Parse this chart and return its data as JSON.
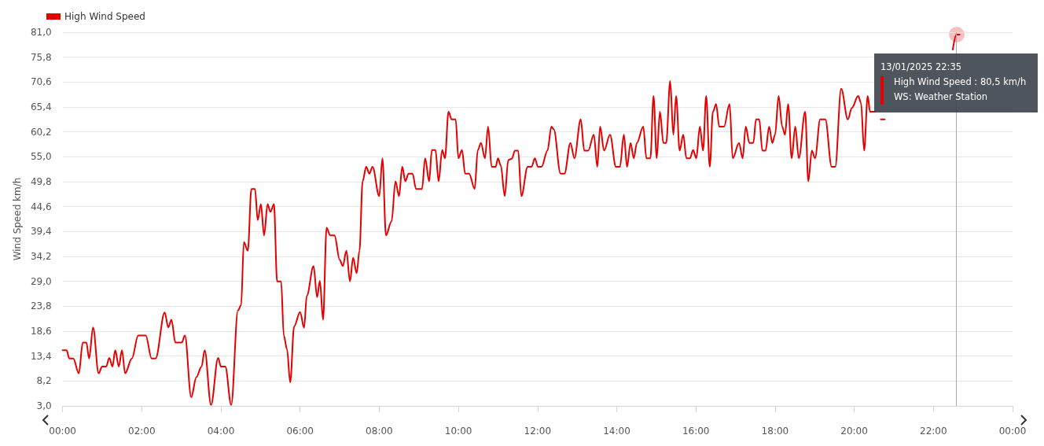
{
  "chart_data": {
    "type": "line",
    "ylabel": "Wind Speed km/h",
    "legend": "top left",
    "grid": "y",
    "marker": "none",
    "line_style": "solid",
    "xlim": [
      0,
      24
    ],
    "xticks": [
      {
        "value": 0,
        "label": "00:00"
      },
      {
        "value": 2,
        "label": "02:00"
      },
      {
        "value": 4,
        "label": "04:00"
      },
      {
        "value": 6,
        "label": "06:00"
      },
      {
        "value": 8,
        "label": "08:00"
      },
      {
        "value": 10,
        "label": "10:00"
      },
      {
        "value": 12,
        "label": "12:00"
      },
      {
        "value": 14,
        "label": "14:00"
      },
      {
        "value": 16,
        "label": "16:00"
      },
      {
        "value": 18,
        "label": "18:00"
      },
      {
        "value": 20,
        "label": "20:00"
      },
      {
        "value": 22,
        "label": "22:00"
      },
      {
        "value": 24,
        "label": "00:00"
      }
    ],
    "ylim": [
      3,
      81
    ],
    "yticks": [
      {
        "value": 3,
        "label": "3,0"
      },
      {
        "value": 8.2,
        "label": "8,2"
      },
      {
        "value": 13.4,
        "label": "13,4"
      },
      {
        "value": 18.6,
        "label": "18,6"
      },
      {
        "value": 23.8,
        "label": "23,8"
      },
      {
        "value": 29,
        "label": "29,0"
      },
      {
        "value": 34.2,
        "label": "34,2"
      },
      {
        "value": 39.4,
        "label": "39,4"
      },
      {
        "value": 44.6,
        "label": "44,6"
      },
      {
        "value": 49.8,
        "label": "49,8"
      },
      {
        "value": 55,
        "label": "55,0"
      },
      {
        "value": 60.2,
        "label": "60,2"
      },
      {
        "value": 65.4,
        "label": "65,4"
      },
      {
        "value": 70.6,
        "label": "70,6"
      },
      {
        "value": 75.8,
        "label": "75,8"
      },
      {
        "value": 81,
        "label": "81,0"
      }
    ],
    "x": [
      0,
      0.1,
      0.17,
      0.27,
      0.41,
      0.51,
      0.6,
      0.67,
      0.77,
      0.91,
      1.0,
      1.1,
      1.18,
      1.26,
      1.33,
      1.42,
      1.5,
      1.58,
      1.75,
      1.91,
      2.1,
      2.25,
      2.35,
      2.58,
      2.67,
      2.75,
      2.85,
      3.01,
      3.09,
      3.25,
      3.38,
      3.51,
      3.59,
      3.75,
      3.93,
      4.0,
      4.11,
      4.26,
      4.43,
      4.51,
      4.58,
      4.68,
      4.77,
      4.86,
      4.93,
      5.01,
      5.09,
      5.18,
      5.25,
      5.34,
      5.42,
      5.52,
      5.59,
      5.67,
      5.75,
      5.85,
      6.0,
      6.1,
      6.17,
      6.34,
      6.43,
      6.5,
      6.58,
      6.67,
      6.76,
      6.87,
      7.0,
      7.08,
      7.17,
      7.26,
      7.34,
      7.43,
      7.5,
      7.58,
      7.67,
      7.75,
      7.83,
      8.0,
      8.08,
      8.17,
      8.31,
      8.41,
      8.5,
      8.58,
      8.66,
      8.74,
      8.84,
      8.93,
      9.08,
      9.16,
      9.26,
      9.33,
      9.42,
      9.5,
      9.59,
      9.66,
      9.75,
      9.83,
      9.93,
      10.0,
      10.09,
      10.17,
      10.27,
      10.41,
      10.49,
      10.57,
      10.67,
      10.75,
      10.84,
      10.94,
      11.0,
      11.07,
      11.17,
      11.26,
      11.35,
      11.43,
      11.51,
      11.59,
      11.75,
      11.85,
      11.93,
      12.01,
      12.1,
      12.25,
      12.35,
      12.41,
      12.58,
      12.68,
      12.83,
      12.93,
      13.09,
      13.18,
      13.28,
      13.42,
      13.51,
      13.58,
      13.68,
      13.83,
      13.98,
      14.08,
      14.18,
      14.26,
      14.35,
      14.43,
      14.51,
      14.67,
      14.75,
      14.85,
      14.93,
      15.01,
      15.09,
      15.18,
      15.25,
      15.35,
      15.43,
      15.5,
      15.59,
      15.68,
      15.76,
      15.85,
      15.93,
      16.01,
      16.1,
      16.18,
      16.26,
      16.35,
      16.43,
      16.51,
      16.59,
      16.71,
      16.85,
      16.93,
      17.09,
      17.18,
      17.26,
      17.35,
      17.45,
      17.52,
      17.6,
      17.68,
      17.76,
      17.85,
      17.93,
      18.0,
      18.09,
      18.18,
      18.25,
      18.33,
      18.42,
      18.51,
      18.6,
      18.76,
      18.84,
      18.93,
      19.01,
      19.14,
      19.27,
      19.43,
      19.52,
      19.67,
      19.84,
      19.94,
      20.1,
      20.17,
      20.25,
      20.34,
      20.4,
      20.53,
      20.6,
      20.67,
      20.77,
      20.87,
      20.97,
      21.07,
      21.15,
      21.26,
      21.34,
      21.46,
      21.66,
      21.74,
      21.83,
      21.93,
      22.03,
      22.19,
      22.39,
      22.49,
      22.583,
      22.66
    ],
    "series": [
      {
        "name": "High Wind Speed",
        "color": "#e50000",
        "values": [
          14.6,
          14.6,
          12.9,
          12.9,
          9.8,
          16.2,
          16.2,
          12.9,
          19.4,
          9.8,
          11.2,
          11.2,
          13.0,
          11.2,
          14.6,
          11.2,
          14.6,
          9.8,
          12.9,
          17.7,
          17.7,
          12.9,
          12.9,
          22.5,
          19.4,
          21.0,
          16.2,
          16.2,
          17.7,
          4.8,
          9.0,
          11.2,
          14.6,
          3.2,
          13.0,
          11.2,
          11.2,
          3.2,
          22.9,
          24.0,
          37.2,
          35.4,
          48.3,
          48.3,
          41.8,
          45.1,
          38.6,
          45.1,
          43.5,
          45.1,
          29.0,
          29.0,
          17.6,
          14.8,
          7.9,
          19.6,
          22.6,
          19.3,
          26.0,
          32.2,
          25.7,
          29.1,
          21.0,
          40.2,
          38.6,
          38.6,
          33.5,
          32.2,
          35.4,
          29.0,
          33.9,
          30.7,
          35.4,
          49.9,
          52.9,
          51.5,
          52.9,
          46.8,
          54.7,
          38.6,
          41.5,
          49.9,
          46.8,
          52.9,
          49.9,
          51.5,
          51.5,
          48.3,
          48.3,
          54.7,
          49.9,
          56.4,
          56.4,
          49.9,
          56.4,
          54.7,
          64.4,
          62.8,
          62.8,
          54.7,
          56.4,
          51.5,
          51.5,
          48.3,
          56.4,
          57.9,
          54.7,
          61.3,
          52.9,
          52.9,
          54.7,
          53.2,
          46.8,
          54.3,
          54.6,
          56.3,
          56.3,
          46.8,
          52.9,
          52.9,
          54.7,
          52.9,
          52.9,
          56.3,
          61.3,
          60.7,
          51.5,
          51.5,
          57.9,
          54.7,
          62.8,
          56.3,
          56.3,
          59.6,
          52.9,
          61.3,
          56.3,
          59.6,
          52.9,
          52.9,
          59.6,
          52.9,
          57.9,
          54.7,
          57.9,
          61.3,
          54.7,
          54.7,
          67.7,
          54.7,
          64.4,
          57.9,
          57.9,
          70.8,
          59.6,
          67.7,
          56.3,
          59.6,
          54.7,
          54.7,
          56.4,
          54.7,
          61.3,
          56.3,
          67.7,
          52.9,
          64.4,
          66.0,
          61.3,
          61.3,
          66.0,
          54.7,
          57.9,
          54.7,
          61.3,
          57.9,
          57.9,
          62.8,
          62.8,
          56.3,
          56.3,
          61.3,
          57.9,
          59.6,
          67.7,
          61.3,
          59.6,
          66.0,
          54.7,
          61.3,
          54.7,
          64.4,
          49.9,
          56.3,
          54.7,
          62.8,
          62.8,
          52.9,
          52.9,
          69.2,
          62.8,
          65.2,
          67.7,
          66.3,
          56.3,
          67.7,
          64.4,
          64.4,
          null,
          62.8,
          62.8,
          null,
          null,
          null,
          null,
          null,
          null,
          null,
          null,
          null,
          null,
          null,
          null,
          null,
          null,
          77.4,
          80.5,
          80.5
        ]
      }
    ],
    "ref_lines": [
      {
        "axis": "x",
        "value": 22.583,
        "label": null,
        "color": "#aaaaaa"
      }
    ],
    "annotations": [
      {
        "text": "13/01/2025 22:35",
        "x": 22.583,
        "y": 80.5
      },
      "High Wind Speed : 80,5 km/h",
      "WS: Weather Station"
    ]
  }
}
